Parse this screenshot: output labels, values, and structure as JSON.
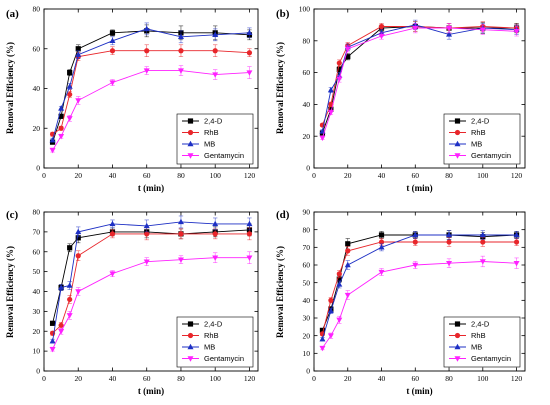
{
  "chart_data": [
    {
      "type": "line",
      "panel_label": "(a)",
      "xlabel": "t (min)",
      "ylabel": "Removal Efficiency (%)",
      "xlim": [
        0,
        125
      ],
      "xticks": [
        0,
        20,
        40,
        60,
        80,
        100,
        120
      ],
      "ylim": [
        0,
        80
      ],
      "yticks": [
        0,
        20,
        40,
        60,
        80
      ],
      "legend_position": "bottom-right",
      "series": [
        {
          "name": "2,4-D",
          "color": "#000000",
          "marker": "square",
          "x": [
            5,
            10,
            15,
            20,
            40,
            60,
            80,
            100,
            120
          ],
          "y": [
            13,
            26,
            48,
            60,
            68,
            69,
            68,
            68,
            67
          ],
          "err": [
            1,
            1,
            1.5,
            2,
            1.5,
            3,
            3.5,
            3.5,
            2.5
          ]
        },
        {
          "name": "RhB",
          "color": "#e8262b",
          "marker": "circle",
          "x": [
            5,
            10,
            15,
            20,
            40,
            60,
            80,
            100,
            120
          ],
          "y": [
            17,
            20,
            37,
            56,
            59,
            59,
            59,
            59,
            58
          ],
          "err": [
            1,
            1,
            1.5,
            2,
            2,
            3,
            3,
            3,
            2
          ]
        },
        {
          "name": "MB",
          "color": "#1d2fc4",
          "marker": "triangle-up",
          "x": [
            5,
            10,
            15,
            20,
            40,
            60,
            80,
            100,
            120
          ],
          "y": [
            14,
            30,
            41,
            57,
            64,
            70,
            66,
            67,
            68
          ],
          "err": [
            1,
            1,
            1.5,
            2,
            2,
            3,
            3,
            3,
            2.5
          ]
        },
        {
          "name": "Gentamycin",
          "color": "#ff21ff",
          "marker": "triangle-down",
          "x": [
            5,
            10,
            15,
            20,
            40,
            60,
            80,
            100,
            120
          ],
          "y": [
            9,
            16,
            25,
            34,
            43,
            49,
            49,
            47,
            48
          ],
          "err": [
            1,
            1,
            1.5,
            2,
            1.5,
            2,
            2.5,
            2.5,
            3
          ]
        }
      ]
    },
    {
      "type": "line",
      "panel_label": "(b)",
      "xlabel": "t (min)",
      "ylabel": "Removal Efficiency (%)",
      "xlim": [
        0,
        125
      ],
      "xticks": [
        0,
        20,
        40,
        60,
        80,
        100,
        120
      ],
      "ylim": [
        0,
        100
      ],
      "yticks": [
        0,
        20,
        40,
        60,
        80,
        100
      ],
      "legend_position": "bottom-right",
      "series": [
        {
          "name": "2,4-D",
          "color": "#000000",
          "marker": "square",
          "x": [
            5,
            10,
            15,
            20,
            40,
            60,
            80,
            100,
            120
          ],
          "y": [
            22,
            37,
            62,
            70,
            88,
            89,
            88,
            88,
            88
          ],
          "err": [
            1,
            1.5,
            2,
            2,
            2,
            3,
            3,
            3.5,
            3
          ]
        },
        {
          "name": "RhB",
          "color": "#e8262b",
          "marker": "circle",
          "x": [
            5,
            10,
            15,
            20,
            40,
            60,
            80,
            100,
            120
          ],
          "y": [
            27,
            40,
            66,
            77,
            89,
            89,
            88,
            89,
            88
          ],
          "err": [
            1,
            1.5,
            2,
            2,
            2,
            3,
            3,
            3,
            2.5
          ]
        },
        {
          "name": "MB",
          "color": "#1d2fc4",
          "marker": "triangle-up",
          "x": [
            5,
            10,
            15,
            20,
            40,
            60,
            80,
            100,
            120
          ],
          "y": [
            23,
            49,
            58,
            76,
            85,
            90,
            84,
            88,
            87
          ],
          "err": [
            1,
            1.5,
            2,
            2,
            2,
            3,
            3,
            3,
            3
          ]
        },
        {
          "name": "Gentamycin",
          "color": "#ff21ff",
          "marker": "triangle-down",
          "x": [
            5,
            10,
            15,
            20,
            40,
            60,
            80,
            100,
            120
          ],
          "y": [
            19,
            35,
            56,
            75,
            83,
            88,
            88,
            87,
            86
          ],
          "err": [
            1,
            1.5,
            2,
            2,
            2,
            3,
            3,
            3,
            3
          ]
        }
      ]
    },
    {
      "type": "line",
      "panel_label": "(c)",
      "xlabel": "t (min)",
      "ylabel": "Removal Efficiency (%)",
      "xlim": [
        0,
        125
      ],
      "xticks": [
        0,
        20,
        40,
        60,
        80,
        100,
        120
      ],
      "ylim": [
        0,
        80
      ],
      "yticks": [
        0,
        10,
        20,
        30,
        40,
        50,
        60,
        70,
        80
      ],
      "legend_position": "bottom-right",
      "series": [
        {
          "name": "2,4-D",
          "color": "#000000",
          "marker": "square",
          "x": [
            5,
            10,
            15,
            20,
            40,
            60,
            80,
            100,
            120
          ],
          "y": [
            24,
            42,
            62,
            67,
            70,
            70,
            69,
            70,
            71
          ],
          "err": [
            1,
            1.5,
            2,
            2.5,
            2,
            3,
            2.5,
            2.5,
            3
          ]
        },
        {
          "name": "RhB",
          "color": "#e8262b",
          "marker": "circle",
          "x": [
            5,
            10,
            15,
            20,
            40,
            60,
            80,
            100,
            120
          ],
          "y": [
            19,
            23,
            36,
            58,
            69,
            69,
            69,
            69,
            69
          ],
          "err": [
            1,
            1.5,
            2,
            2.5,
            2,
            3,
            2.5,
            2.5,
            3
          ]
        },
        {
          "name": "MB",
          "color": "#1d2fc4",
          "marker": "triangle-up",
          "x": [
            5,
            10,
            15,
            20,
            40,
            60,
            80,
            100,
            120
          ],
          "y": [
            15,
            42,
            43,
            70,
            74,
            73,
            75,
            74,
            74
          ],
          "err": [
            1,
            1.5,
            2,
            2.5,
            2,
            3,
            3,
            3,
            3
          ]
        },
        {
          "name": "Gentamycin",
          "color": "#ff21ff",
          "marker": "triangle-down",
          "x": [
            5,
            10,
            15,
            20,
            40,
            60,
            80,
            100,
            120
          ],
          "y": [
            11,
            20,
            28,
            40,
            49,
            55,
            56,
            57,
            57
          ],
          "err": [
            1,
            1.5,
            2,
            2,
            1.5,
            2,
            2,
            2.5,
            3
          ]
        }
      ]
    },
    {
      "type": "line",
      "panel_label": "(d)",
      "xlabel": "t (min)",
      "ylabel": "Removal Efficiency (%)",
      "xlim": [
        0,
        125
      ],
      "xticks": [
        0,
        20,
        40,
        60,
        80,
        100,
        120
      ],
      "ylim": [
        0,
        90
      ],
      "yticks": [
        0,
        10,
        20,
        30,
        40,
        50,
        60,
        70,
        80,
        90
      ],
      "legend_position": "bottom-right",
      "series": [
        {
          "name": "2,4-D",
          "color": "#000000",
          "marker": "square",
          "x": [
            5,
            10,
            15,
            20,
            40,
            60,
            80,
            100,
            120
          ],
          "y": [
            23,
            35,
            52,
            72,
            77,
            77,
            77,
            76,
            77
          ],
          "err": [
            1,
            1.5,
            2,
            3,
            2,
            2,
            2.5,
            2.5,
            2
          ]
        },
        {
          "name": "RhB",
          "color": "#e8262b",
          "marker": "circle",
          "x": [
            5,
            10,
            15,
            20,
            40,
            60,
            80,
            100,
            120
          ],
          "y": [
            21,
            40,
            55,
            68,
            73,
            73,
            73,
            73,
            73
          ],
          "err": [
            1,
            1.5,
            2,
            2.5,
            2,
            2,
            2.5,
            2.5,
            2
          ]
        },
        {
          "name": "MB",
          "color": "#1d2fc4",
          "marker": "triangle-up",
          "x": [
            5,
            10,
            15,
            20,
            40,
            60,
            80,
            100,
            120
          ],
          "y": [
            18,
            34,
            49,
            60,
            70,
            77,
            77,
            77,
            77
          ],
          "err": [
            1,
            1.5,
            2,
            2.5,
            2,
            2,
            2.5,
            2.5,
            2
          ]
        },
        {
          "name": "Gentamycin",
          "color": "#ff21ff",
          "marker": "triangle-down",
          "x": [
            5,
            10,
            15,
            20,
            40,
            60,
            80,
            100,
            120
          ],
          "y": [
            13,
            20,
            29,
            43,
            56,
            60,
            61,
            62,
            61
          ],
          "err": [
            1,
            1.5,
            2,
            2.5,
            2,
            2,
            2.5,
            3,
            3
          ]
        }
      ]
    }
  ]
}
